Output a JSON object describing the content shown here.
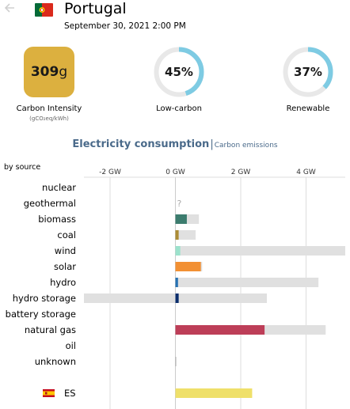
{
  "header": {
    "back_icon": "arrow-left-icon",
    "flag_icon": "portugal-flag-icon",
    "country": "Portugal",
    "timestamp": "September 30, 2021 2:00 PM"
  },
  "metrics": {
    "carbon_intensity": {
      "value": "309",
      "unit": "g",
      "label": "Carbon Intensity",
      "sublabel": "(gCO₂eq/kWh)",
      "color": "#dcb03f"
    },
    "low_carbon": {
      "value": "45%",
      "fraction": 0.45,
      "label": "Low-carbon"
    },
    "renewable": {
      "value": "37%",
      "fraction": 0.37,
      "label": "Renewable"
    },
    "gauge_color": "#7ecbe3",
    "gauge_track_color": "#e8e8e8"
  },
  "title": {
    "main": "Electricity consumption",
    "separator": "|",
    "link": "Carbon emissions"
  },
  "by_source_label": "by source",
  "chart_data": {
    "type": "bar",
    "orientation": "horizontal",
    "unit": "GW",
    "xlim": [
      -2.8,
      5.2
    ],
    "ticks": [
      {
        "value": -2,
        "label": "-2 GW"
      },
      {
        "value": 0,
        "label": "0 GW"
      },
      {
        "value": 2,
        "label": "2 GW"
      },
      {
        "value": 4,
        "label": "4 GW"
      }
    ],
    "grid": true,
    "unknown_marker": "?",
    "sources": [
      {
        "name": "nuclear",
        "value": 0,
        "capacity_min": 0,
        "capacity_max": 0,
        "color": "#aeb800"
      },
      {
        "name": "geothermal",
        "value": null,
        "capacity_min": 0,
        "capacity_max": 0,
        "color": "#ff0000",
        "unknown": true
      },
      {
        "name": "biomass",
        "value": 0.35,
        "capacity_min": 0,
        "capacity_max": 0.72,
        "color": "#3c7c6e"
      },
      {
        "name": "coal",
        "value": 0.1,
        "capacity_min": 0,
        "capacity_max": 0.62,
        "color": "#ac8c35"
      },
      {
        "name": "wind",
        "value": 0.15,
        "capacity_min": 0,
        "capacity_max": 5.2,
        "color": "#9ce2cc"
      },
      {
        "name": "solar",
        "value": 0.78,
        "capacity_min": 0,
        "capacity_max": 0.82,
        "color": "#f29033"
      },
      {
        "name": "hydro",
        "value": 0.08,
        "capacity_min": 0,
        "capacity_max": 4.38,
        "color": "#2772b2"
      },
      {
        "name": "hydro storage",
        "value": 0.1,
        "capacity_min": -2.8,
        "capacity_max": 2.8,
        "color": "#0b2e6c"
      },
      {
        "name": "battery storage",
        "value": 0,
        "capacity_min": 0,
        "capacity_max": 0,
        "color": "#b76fd4"
      },
      {
        "name": "natural gas",
        "value": 2.73,
        "capacity_min": 0,
        "capacity_max": 4.6,
        "color": "#bd3e58"
      },
      {
        "name": "oil",
        "value": 0,
        "capacity_min": 0,
        "capacity_max": 0,
        "color": "#867d66"
      },
      {
        "name": "unknown",
        "value": 0.02,
        "capacity_min": 0,
        "capacity_max": 0.02,
        "color": "#acacac"
      }
    ],
    "exchanges": [
      {
        "name": "ES",
        "flag_icon": "spain-flag-icon",
        "value": 2.35,
        "color": "#efe06a"
      }
    ],
    "capacity_color": "#e0e0e0"
  }
}
